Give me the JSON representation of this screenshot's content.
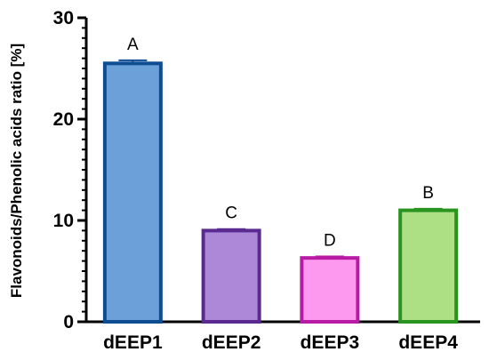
{
  "chart_data": {
    "type": "bar",
    "categories": [
      "dEEP1",
      "dEEP2",
      "dEEP3",
      "dEEP4"
    ],
    "values": [
      25.5,
      9.0,
      6.3,
      11.0
    ],
    "errors": [
      0.3,
      0.15,
      0.15,
      0.15
    ],
    "annotations": [
      "A",
      "C",
      "D",
      "B"
    ],
    "ylabel": "Flavonoids/Phenolic acids ratio [%]",
    "xlabel": "",
    "ylim": [
      0,
      30
    ],
    "yticks": [
      0,
      10,
      20,
      30
    ],
    "grid": false,
    "colors": {
      "fills": [
        "#6ca0d8",
        "#ad88d8",
        "#fd99ee",
        "#addf85"
      ],
      "strokes": [
        "#0f4d93",
        "#5b2a91",
        "#b71aa3",
        "#2a9421"
      ],
      "axis": "#000000"
    }
  }
}
